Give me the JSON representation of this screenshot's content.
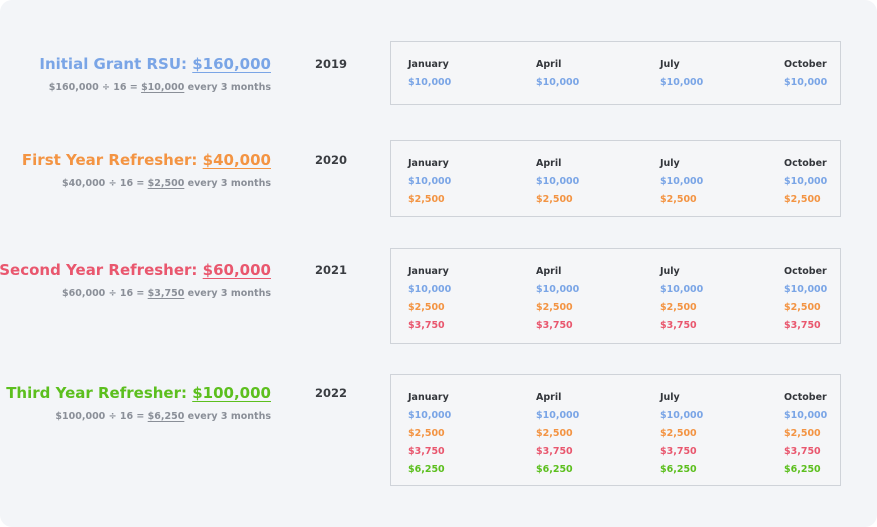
{
  "colors": {
    "blue": "#7aa5e6",
    "orange": "#f39443",
    "red": "#e9576e",
    "green": "#5cbf1e"
  },
  "months": [
    "January",
    "April",
    "July",
    "October"
  ],
  "grants": [
    {
      "label": "Initial Grant RSU:",
      "amount": "$160,000",
      "formula_pre": "$160,000 ÷ 16 =",
      "formula_amt": "$10,000",
      "formula_post": "every 3 months",
      "year": "2019",
      "values": [
        "$10,000"
      ]
    },
    {
      "label": "First Year Refresher:",
      "amount": "$40,000",
      "formula_pre": "$40,000 ÷ 16 =",
      "formula_amt": "$2,500",
      "formula_post": "every 3 months",
      "year": "2020",
      "values": [
        "$10,000",
        "$2,500"
      ]
    },
    {
      "label": "Second Year Refresher:",
      "amount": "$60,000",
      "formula_pre": "$60,000 ÷ 16 =",
      "formula_amt": "$3,750",
      "formula_post": "every 3 months",
      "year": "2021",
      "values": [
        "$10,000",
        "$2,500",
        "$3,750"
      ]
    },
    {
      "label": "Third Year Refresher:",
      "amount": "$100,000",
      "formula_pre": "$100,000 ÷ 16 =",
      "formula_amt": "$6,250",
      "formula_post": "every 3 months",
      "year": "2022",
      "values": [
        "$10,000",
        "$2,500",
        "$3,750",
        "$6,250"
      ]
    }
  ]
}
